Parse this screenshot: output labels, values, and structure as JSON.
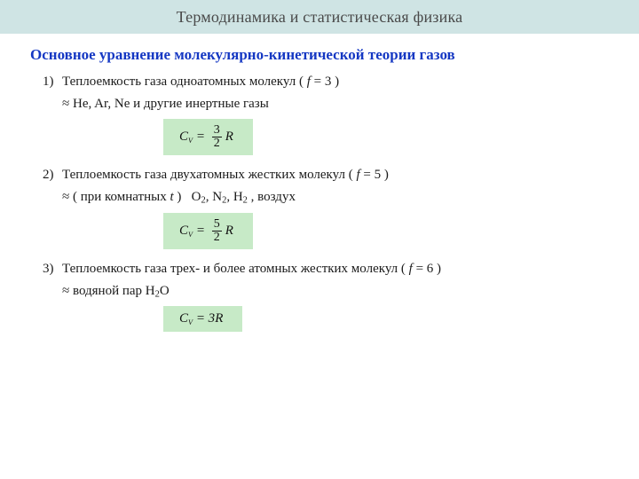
{
  "banner": {
    "title": "Термодинамика и статистическая физика"
  },
  "subtitle": "Основное уравнение молекулярно-кинетической теории газов",
  "items": [
    {
      "num": "1)",
      "line": "Теплоемкость газа одноатомных молекул ( <span class='it'>f</span> = 3 )",
      "approx": "≈ He, Ar, Ne и другие инертные газы",
      "formula": "<span class='it'>C<span class='sub'>V</span></span> = <span class='frac'><span class='n'>3</span><span class='d'>2</span></span><span class='it'>R</span>"
    },
    {
      "num": "2)",
      "line": "Теплоемкость газа двухатомных жестких молекул ( <span class='it'>f</span> = 5 )",
      "approx": "≈ ( при комнатных <span class='it'>t</span> ) &nbsp; O<sub>2</sub>, N<sub>2</sub>, H<sub>2</sub> , воздух",
      "formula": "<span class='it'>C<span class='sub'>V</span></span> = <span class='frac'><span class='n'>5</span><span class='d'>2</span></span><span class='it'>R</span>"
    },
    {
      "num": "3)",
      "line": "Теплоемкость газа трех- и более атомных жестких молекул ( <span class='it'>f</span> = 6 )",
      "approx": "≈ водяной пар H<sub>2</sub>O",
      "formula": "<span class='it'>C<span class='sub'>V</span></span> = 3<span class='it'>R</span>"
    }
  ],
  "colors": {
    "banner_bg": "#cfe4e4",
    "subtitle": "#1538c3",
    "formula_bg": "#c7eac7",
    "text": "#1a1a1a"
  }
}
